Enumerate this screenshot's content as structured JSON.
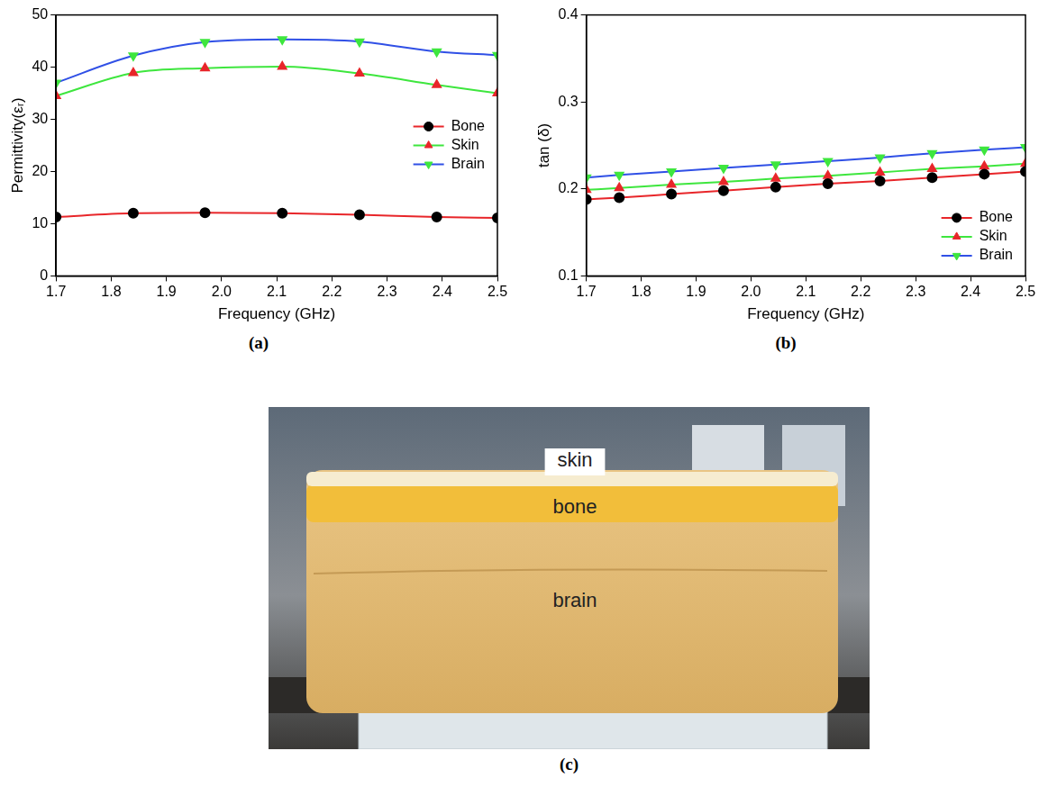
{
  "chart_data": [
    {
      "type": "line",
      "panel_label": "(a)",
      "x_label": "Frequency (GHz)",
      "y_label": "Permittivity(εᵣ)",
      "x": [
        1.7,
        1.84,
        1.97,
        2.11,
        2.25,
        2.39,
        2.5
      ],
      "series": [
        {
          "name": "Bone",
          "color": "#e8262a",
          "marker": "circle",
          "values": [
            11.3,
            12.0,
            12.1,
            12.0,
            11.7,
            11.3,
            11.1
          ]
        },
        {
          "name": "Skin",
          "color": "#3ee63e",
          "marker": "triangle",
          "values": [
            34.5,
            38.9,
            39.8,
            40.1,
            38.8,
            36.6,
            35.0
          ]
        },
        {
          "name": "Brain",
          "color": "#3050e6",
          "marker": "triangle_down",
          "values": [
            37.0,
            42.2,
            44.8,
            45.3,
            44.9,
            43.0,
            42.3
          ]
        }
      ],
      "xlim": [
        1.7,
        2.5
      ],
      "xticks": [
        1.7,
        1.8,
        1.9,
        {
          "value": 2,
          "label": "2.0"
        },
        2.1,
        2.2,
        2.3,
        2.4,
        2.5
      ],
      "ylim": [
        0,
        50
      ],
      "yticks": [
        0,
        10,
        20,
        30,
        40,
        50
      ],
      "grid": false,
      "legend": "center right"
    },
    {
      "type": "line",
      "panel_label": "(b)",
      "x_label": "Frequency (GHz)",
      "y_label": "tan (δ)",
      "x": [
        1.7,
        1.76,
        1.855,
        1.95,
        2.045,
        2.14,
        2.235,
        2.33,
        2.425,
        2.5
      ],
      "series": [
        {
          "name": "Bone",
          "color": "#e8262a",
          "marker": "circle",
          "values": [
            0.188,
            0.19,
            0.194,
            0.198,
            0.202,
            0.206,
            0.209,
            0.213,
            0.217,
            0.22
          ]
        },
        {
          "name": "Skin",
          "color": "#3ee63e",
          "marker": "triangle",
          "values": [
            0.199,
            0.201,
            0.205,
            0.208,
            0.212,
            0.215,
            0.219,
            0.223,
            0.226,
            0.229
          ]
        },
        {
          "name": "Brain",
          "color": "#3050e6",
          "marker": "triangle_down",
          "values": [
            0.213,
            0.216,
            0.22,
            0.224,
            0.228,
            0.232,
            0.236,
            0.241,
            0.245,
            0.248
          ]
        }
      ],
      "xlim": [
        1.7,
        2.5
      ],
      "xticks": [
        1.7,
        1.8,
        1.9,
        {
          "value": 2,
          "label": "2.0"
        },
        2.1,
        2.2,
        2.3,
        2.4,
        2.5
      ],
      "ylim": [
        0.1,
        0.4
      ],
      "yticks": [
        0.1,
        0.2,
        0.3,
        0.4
      ],
      "grid": false,
      "legend": "lower right"
    }
  ],
  "photo": {
    "panel_label": "(c)",
    "layers": [
      "skin",
      "bone",
      "brain"
    ]
  }
}
